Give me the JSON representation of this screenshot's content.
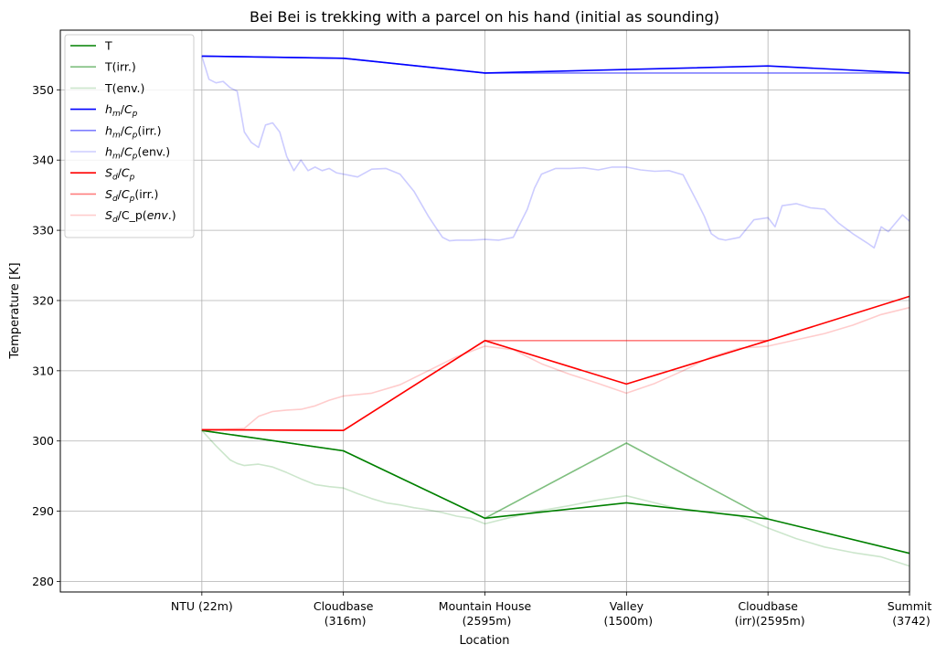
{
  "chart_data": {
    "type": "line",
    "title": "Bei Bei is trekking with a parcel on his hand (initial as sounding)",
    "xlabel": "Location",
    "ylabel": "Temperature [K]",
    "categories": [
      [
        "NTU (22m)"
      ],
      [
        "Cloudbase",
        "(316m)"
      ],
      [
        "Mountain House",
        "(2595m)"
      ],
      [
        "Valley",
        "(1500m)"
      ],
      [
        "Cloudbase",
        "(irr)(2595m)"
      ],
      [
        "Summit",
        "(3742)"
      ]
    ],
    "xlim": [
      -1,
      5
    ],
    "ylim": [
      278.5,
      358.5
    ],
    "yticks": [
      280,
      290,
      300,
      310,
      320,
      330,
      340,
      350
    ],
    "grid": true,
    "legend_position": "upper left",
    "series": [
      {
        "name": "T",
        "color": "#008000",
        "alpha": 1.0,
        "x": [
          0,
          1,
          2,
          3,
          4,
          5
        ],
        "y": [
          301.5,
          298.6,
          289.0,
          291.2,
          288.9,
          284.0
        ]
      },
      {
        "name": "T(irr.)",
        "color": "#008000",
        "alpha": 0.5,
        "x": [
          0,
          1,
          2,
          3,
          4
        ],
        "y": [
          301.5,
          298.6,
          289.0,
          299.7,
          288.9
        ]
      },
      {
        "name": "T(env.)",
        "color": "#008000",
        "alpha": 0.2,
        "x": [
          0,
          0.1,
          0.2,
          0.25,
          0.3,
          0.4,
          0.5,
          0.6,
          0.7,
          0.8,
          0.9,
          1.0,
          1.1,
          1.2,
          1.3,
          1.4,
          1.5,
          1.6,
          1.7,
          1.8,
          1.9,
          2.0,
          2.2,
          2.4,
          2.6,
          2.8,
          3.0,
          3.2,
          3.4,
          3.6,
          3.8,
          4.0,
          4.2,
          4.4,
          4.6,
          4.8,
          5.0
        ],
        "y": [
          301.5,
          299.3,
          297.3,
          296.8,
          296.5,
          296.7,
          296.3,
          295.5,
          294.6,
          293.8,
          293.5,
          293.3,
          292.5,
          291.8,
          291.2,
          290.9,
          290.5,
          290.2,
          289.8,
          289.3,
          289.0,
          288.2,
          289.2,
          290.1,
          290.8,
          291.6,
          292.2,
          291.2,
          290.2,
          289.8,
          289.3,
          287.6,
          286.1,
          284.9,
          284.1,
          283.5,
          282.2
        ]
      },
      {
        "name": "$h_m/C_p$",
        "color": "#0000ff",
        "alpha": 1.0,
        "x": [
          0,
          1,
          2,
          3,
          4,
          5
        ],
        "y": [
          354.8,
          354.5,
          352.4,
          352.9,
          353.4,
          352.4
        ]
      },
      {
        "name": "$h_m/C_p$(irr.)",
        "color": "#0000ff",
        "alpha": 0.5,
        "x": [
          0,
          1,
          2,
          3,
          4,
          5
        ],
        "y": [
          354.8,
          354.5,
          352.4,
          352.4,
          352.4,
          352.4
        ]
      },
      {
        "name": "$h_m/C_p$(env.)",
        "color": "#0000ff",
        "alpha": 0.2,
        "x": [
          0,
          0.05,
          0.1,
          0.15,
          0.2,
          0.25,
          0.3,
          0.35,
          0.4,
          0.45,
          0.5,
          0.55,
          0.6,
          0.65,
          0.7,
          0.75,
          0.8,
          0.85,
          0.9,
          0.95,
          1.0,
          1.1,
          1.2,
          1.3,
          1.4,
          1.5,
          1.6,
          1.65,
          1.7,
          1.75,
          1.8,
          1.9,
          2.0,
          2.1,
          2.2,
          2.25,
          2.3,
          2.35,
          2.4,
          2.5,
          2.6,
          2.7,
          2.8,
          2.9,
          3.0,
          3.1,
          3.2,
          3.3,
          3.4,
          3.5,
          3.55,
          3.6,
          3.65,
          3.7,
          3.8,
          3.9,
          4.0,
          4.05,
          4.1,
          4.2,
          4.3,
          4.4,
          4.5,
          4.6,
          4.7,
          4.75,
          4.8,
          4.85,
          4.9,
          4.95,
          5.0
        ],
        "y": [
          354.8,
          351.5,
          351.0,
          351.2,
          350.3,
          349.8,
          344.0,
          342.5,
          341.8,
          345.0,
          345.3,
          344.0,
          340.5,
          338.5,
          340.0,
          338.5,
          339.0,
          338.5,
          338.8,
          338.2,
          338.0,
          337.6,
          338.7,
          338.8,
          338.0,
          335.5,
          332.0,
          330.5,
          329.0,
          328.5,
          328.6,
          328.6,
          328.7,
          328.6,
          329.0,
          331.0,
          333.0,
          336.0,
          338.0,
          338.8,
          338.8,
          338.9,
          338.6,
          339.0,
          339.0,
          338.6,
          338.4,
          338.5,
          337.9,
          334.0,
          332.0,
          329.5,
          328.8,
          328.6,
          329.0,
          331.5,
          331.8,
          330.5,
          333.5,
          333.8,
          333.2,
          333.0,
          331.0,
          329.5,
          328.2,
          327.5,
          330.5,
          329.8,
          331.0,
          332.2,
          331.3
        ]
      },
      {
        "name": "$S_d/C_p$",
        "color": "#ff0000",
        "alpha": 1.0,
        "x": [
          0,
          1,
          2,
          3,
          4,
          5
        ],
        "y": [
          301.6,
          301.5,
          314.3,
          308.1,
          314.3,
          320.6
        ]
      },
      {
        "name": "$S_d/C_p$(irr.)",
        "color": "#ff0000",
        "alpha": 0.5,
        "x": [
          0,
          1,
          2,
          3,
          4
        ],
        "y": [
          301.6,
          301.5,
          314.3,
          314.3,
          314.3
        ]
      },
      {
        "name": "$S_d/$C_p$(env.)$",
        "color": "#ff0000",
        "alpha": 0.2,
        "x": [
          0,
          0.1,
          0.2,
          0.3,
          0.4,
          0.5,
          0.6,
          0.7,
          0.8,
          0.9,
          1.0,
          1.2,
          1.4,
          1.6,
          1.8,
          2.0,
          2.2,
          2.4,
          2.6,
          2.8,
          3.0,
          3.2,
          3.4,
          3.6,
          3.8,
          4.0,
          4.2,
          4.4,
          4.6,
          4.8,
          5.0
        ],
        "y": [
          301.6,
          301.6,
          301.7,
          301.8,
          303.5,
          304.2,
          304.4,
          304.5,
          305.0,
          305.8,
          306.4,
          306.8,
          308.0,
          310.0,
          312.0,
          313.5,
          313.0,
          311.0,
          309.5,
          308.2,
          306.8,
          308.2,
          310.0,
          312.0,
          313.2,
          313.5,
          314.4,
          315.3,
          316.5,
          318.0,
          319.0
        ]
      }
    ]
  }
}
